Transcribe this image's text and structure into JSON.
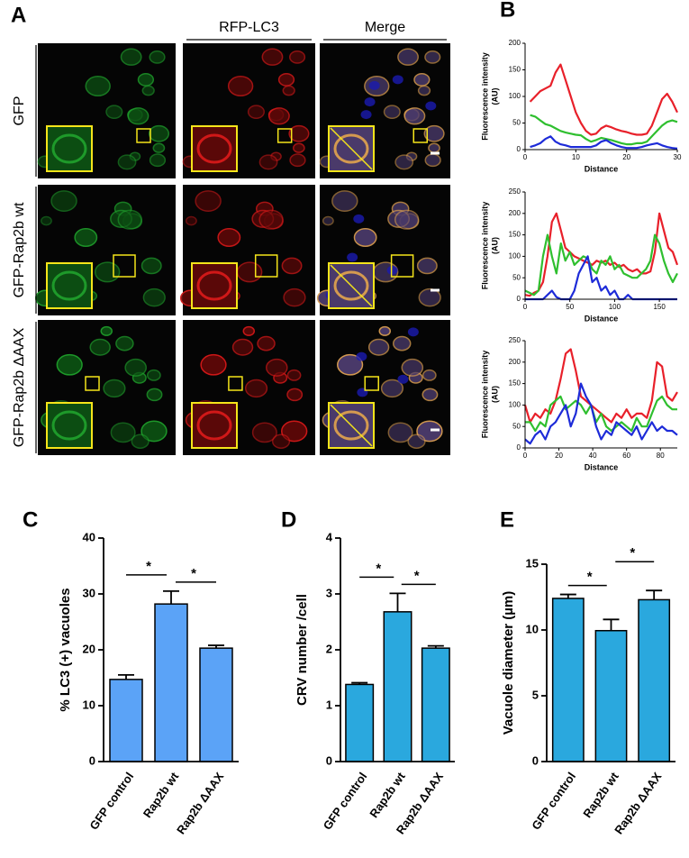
{
  "panel_a": {
    "label": "A",
    "column_titles": [
      "RFP-LC3",
      "Merge"
    ],
    "row_titles": [
      "GFP",
      "GFP-Rap2b wt",
      "GFP-Rap2b ΔAAX"
    ]
  },
  "chart_data": [
    {
      "type": "line",
      "panel_label": "B",
      "y_label": [
        "Fluorescence intensity",
        "(AU)"
      ],
      "x_label": "Distance",
      "x": [
        1,
        2,
        3,
        4,
        5,
        6,
        7,
        8,
        9,
        10,
        11,
        12,
        13,
        14,
        15,
        16,
        17,
        18,
        19,
        20,
        21,
        22,
        23,
        24,
        25,
        26,
        27,
        28,
        29,
        30
      ],
      "xlim": [
        0,
        30
      ],
      "xticks": [
        0,
        10,
        20,
        30
      ],
      "ylim": [
        0,
        200
      ],
      "yticks": [
        0,
        50,
        100,
        150,
        200
      ],
      "series": [
        {
          "color": "#e8202a",
          "values": [
            90,
            100,
            110,
            115,
            120,
            145,
            160,
            130,
            100,
            70,
            50,
            35,
            28,
            30,
            40,
            45,
            42,
            38,
            35,
            33,
            30,
            28,
            28,
            30,
            45,
            70,
            95,
            105,
            90,
            70
          ]
        },
        {
          "color": "#2fbf2f",
          "values": [
            65,
            62,
            55,
            48,
            45,
            40,
            35,
            32,
            30,
            28,
            27,
            20,
            15,
            18,
            22,
            20,
            18,
            15,
            12,
            10,
            10,
            12,
            12,
            15,
            25,
            35,
            45,
            52,
            55,
            52
          ]
        },
        {
          "color": "#1d2bd8",
          "values": [
            5,
            8,
            12,
            20,
            25,
            15,
            10,
            8,
            5,
            5,
            5,
            5,
            5,
            8,
            15,
            18,
            12,
            8,
            5,
            3,
            3,
            3,
            5,
            8,
            10,
            12,
            8,
            5,
            3,
            2
          ]
        }
      ]
    },
    {
      "type": "line",
      "y_label": [
        "Fluorescence intensity",
        "(AU)"
      ],
      "x_label": "Distance",
      "x": [
        0,
        5,
        10,
        15,
        20,
        25,
        30,
        35,
        40,
        45,
        50,
        55,
        60,
        65,
        70,
        75,
        80,
        85,
        90,
        95,
        100,
        105,
        110,
        115,
        120,
        125,
        130,
        135,
        140,
        145,
        150,
        155,
        160,
        165,
        170
      ],
      "xlim": [
        0,
        170
      ],
      "xticks": [
        0,
        50,
        100,
        150
      ],
      "ylim": [
        0,
        250
      ],
      "yticks": [
        0,
        50,
        100,
        150,
        200,
        250
      ],
      "series": [
        {
          "color": "#e8202a",
          "values": [
            10,
            8,
            15,
            20,
            40,
            100,
            180,
            200,
            160,
            120,
            110,
            100,
            95,
            90,
            85,
            80,
            90,
            85,
            90,
            80,
            85,
            75,
            80,
            70,
            65,
            70,
            60,
            60,
            65,
            110,
            200,
            160,
            120,
            110,
            80
          ]
        },
        {
          "color": "#2fbf2f",
          "values": [
            20,
            15,
            10,
            20,
            100,
            150,
            100,
            60,
            130,
            90,
            110,
            80,
            90,
            100,
            95,
            70,
            60,
            90,
            80,
            100,
            70,
            80,
            60,
            55,
            50,
            50,
            60,
            70,
            90,
            150,
            130,
            90,
            60,
            40,
            60
          ]
        },
        {
          "color": "#1d2bd8",
          "values": [
            0,
            0,
            0,
            0,
            0,
            10,
            20,
            5,
            0,
            0,
            0,
            20,
            60,
            80,
            100,
            40,
            50,
            20,
            30,
            10,
            20,
            0,
            0,
            10,
            0,
            0,
            0,
            0,
            0,
            0,
            0,
            0,
            0,
            0,
            0
          ]
        }
      ]
    },
    {
      "type": "line",
      "y_label": [
        "Fluorescence intensity",
        "(AU)"
      ],
      "x_label": "Distance",
      "x": [
        0,
        3,
        6,
        9,
        12,
        15,
        18,
        21,
        24,
        27,
        30,
        33,
        36,
        39,
        42,
        45,
        48,
        51,
        54,
        57,
        60,
        63,
        66,
        69,
        72,
        75,
        78,
        81,
        84,
        87,
        90
      ],
      "xlim": [
        0,
        90
      ],
      "xticks": [
        0,
        20,
        40,
        60,
        80
      ],
      "ylim": [
        0,
        250
      ],
      "yticks": [
        0,
        50,
        100,
        150,
        200,
        250
      ],
      "series": [
        {
          "color": "#e8202a",
          "values": [
            100,
            60,
            80,
            70,
            90,
            80,
            110,
            160,
            220,
            230,
            180,
            120,
            110,
            100,
            90,
            80,
            70,
            60,
            80,
            70,
            90,
            70,
            80,
            80,
            70,
            110,
            200,
            190,
            120,
            110,
            130
          ]
        },
        {
          "color": "#2fbf2f",
          "values": [
            60,
            60,
            40,
            60,
            50,
            100,
            110,
            120,
            90,
            100,
            110,
            100,
            80,
            100,
            60,
            80,
            50,
            40,
            50,
            60,
            50,
            40,
            70,
            50,
            50,
            80,
            110,
            120,
            100,
            90,
            90
          ]
        },
        {
          "color": "#1d2bd8",
          "values": [
            20,
            10,
            30,
            40,
            20,
            50,
            60,
            80,
            100,
            50,
            80,
            150,
            120,
            100,
            50,
            20,
            40,
            30,
            60,
            50,
            40,
            30,
            50,
            20,
            40,
            60,
            40,
            50,
            40,
            40,
            30
          ]
        }
      ]
    },
    {
      "type": "bar",
      "panel_label": "C",
      "y_label": "% LC3 (+) vacuoles",
      "color": "#5ba3f7",
      "categories": [
        "GFP control",
        "Rap2b wt",
        "Rap2b ΔAAX"
      ],
      "values": [
        14.7,
        28.2,
        20.3
      ],
      "errors": [
        0.8,
        2.3,
        0.5
      ],
      "ylim": [
        0,
        40
      ],
      "yticks": [
        0,
        10,
        20,
        30,
        40
      ],
      "annotations": [
        "*",
        "*"
      ]
    },
    {
      "type": "bar",
      "panel_label": "D",
      "y_label": "CRV number /cell",
      "color": "#2aa8de",
      "categories": [
        "GFP control",
        "Rap2b wt",
        "Rap2b ΔAAX"
      ],
      "values": [
        1.38,
        2.68,
        2.03
      ],
      "errors": [
        0.03,
        0.33,
        0.04
      ],
      "ylim": [
        0,
        4
      ],
      "yticks": [
        0,
        1,
        2,
        3,
        4
      ],
      "annotations": [
        "*",
        "*"
      ]
    },
    {
      "type": "bar",
      "panel_label": "E",
      "y_label": "Vacuole diameter (µm)",
      "color": "#2aa8de",
      "categories": [
        "GFP control",
        "Rap2b wt",
        "Rap2b ΔAAX"
      ],
      "values": [
        12.4,
        9.95,
        12.3
      ],
      "errors": [
        0.3,
        0.85,
        0.7
      ],
      "ylim": [
        0,
        15
      ],
      "yticks": [
        0,
        5,
        10,
        15
      ],
      "annotations": [
        "*",
        "*"
      ]
    }
  ]
}
